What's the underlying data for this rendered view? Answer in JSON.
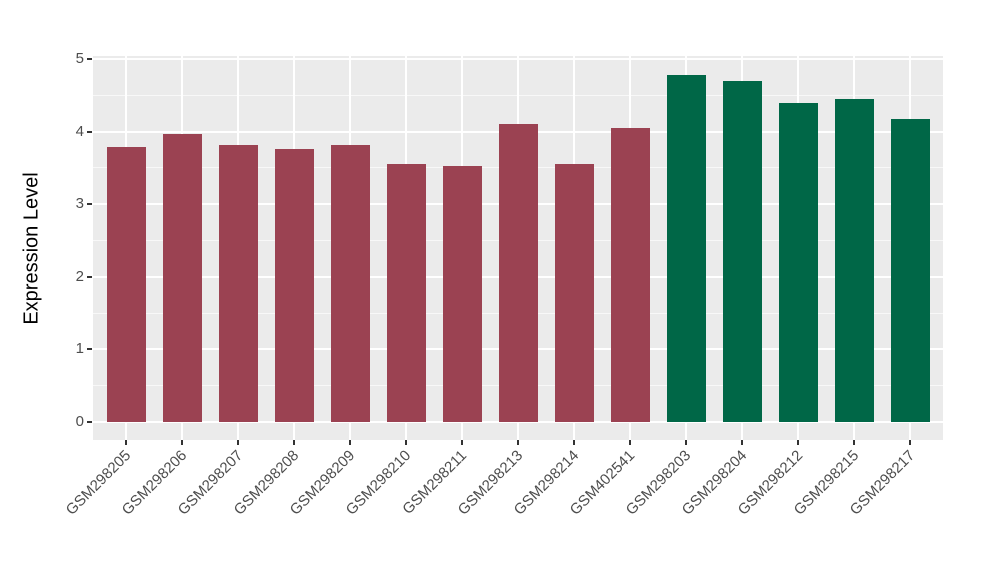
{
  "chart_data": {
    "type": "bar",
    "title": "",
    "xlabel": "",
    "ylabel": "Expression Level",
    "ylim": [
      0,
      5
    ],
    "yticks": [
      0,
      1,
      2,
      3,
      4,
      5
    ],
    "minor_ticks": [
      0.5,
      1.5,
      2.5,
      3.5,
      4.5
    ],
    "grid": "major and minor horizontal white lines, vertical white lines at category centers",
    "legend_position": "none",
    "panel_background": "#EBEBEB",
    "gridline_color": "#FFFFFF",
    "axis_text_color": "#4D4D4D",
    "categories": [
      "GSM298205",
      "GSM298206",
      "GSM298207",
      "GSM298208",
      "GSM298209",
      "GSM298210",
      "GSM298211",
      "GSM298213",
      "GSM298214",
      "GSM402541",
      "GSM298203",
      "GSM298204",
      "GSM298212",
      "GSM298215",
      "GSM298217"
    ],
    "values": [
      3.79,
      3.97,
      3.81,
      3.76,
      3.81,
      3.56,
      3.52,
      4.1,
      3.55,
      4.05,
      4.78,
      4.7,
      4.4,
      4.45,
      4.17
    ],
    "bar_group_index": [
      0,
      0,
      0,
      0,
      0,
      0,
      0,
      0,
      0,
      0,
      1,
      1,
      1,
      1,
      1
    ],
    "groups": [
      {
        "name": "dark-red-group",
        "color": "#9B4252"
      },
      {
        "name": "dark-green-group",
        "color": "#006747"
      }
    ]
  }
}
